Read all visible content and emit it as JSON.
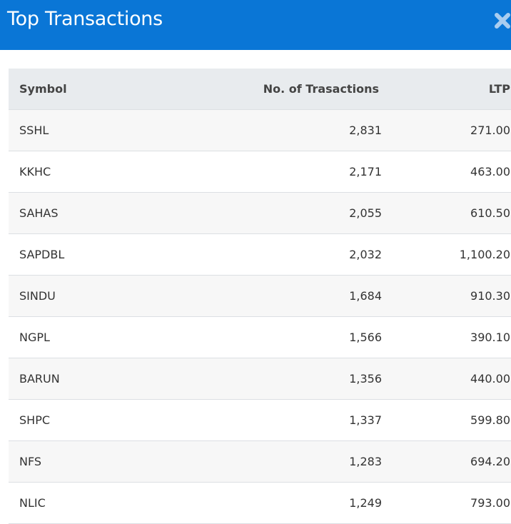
{
  "header": {
    "title": "Top Transactions"
  },
  "table": {
    "columns": [
      "Symbol",
      "No. of Trasactions",
      "LTP"
    ],
    "rows": [
      [
        "SSHL",
        "2,831",
        "271.00"
      ],
      [
        "KKHC",
        "2,171",
        "463.00"
      ],
      [
        "SAHAS",
        "2,055",
        "610.50"
      ],
      [
        "SAPDBL",
        "2,032",
        "1,100.20"
      ],
      [
        "SINDU",
        "1,684",
        "910.30"
      ],
      [
        "NGPL",
        "1,566",
        "390.10"
      ],
      [
        "BARUN",
        "1,356",
        "440.00"
      ],
      [
        "SHPC",
        "1,337",
        "599.80"
      ],
      [
        "NFS",
        "1,283",
        "694.20"
      ],
      [
        "NLIC",
        "1,249",
        "793.00"
      ]
    ]
  }
}
